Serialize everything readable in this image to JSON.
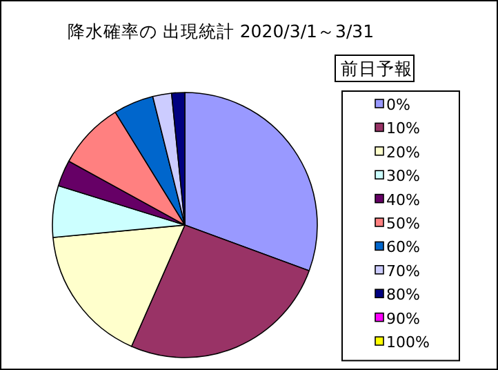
{
  "chart_data": {
    "type": "pie",
    "title": "降水確率の 出現統計 2020/3/1～3/31",
    "legend_title": "前日予報",
    "legend": "right",
    "categories": [
      "0%",
      "10%",
      "20%",
      "30%",
      "40%",
      "50%",
      "60%",
      "70%",
      "80%",
      "90%",
      "100%"
    ],
    "values": [
      30.6,
      26.0,
      16.9,
      6.3,
      3.2,
      8.2,
      4.9,
      2.3,
      1.6,
      0,
      0
    ],
    "colors": [
      "#9999ff",
      "#993366",
      "#ffffcc",
      "#ccffff",
      "#660066",
      "#ff8080",
      "#0066cc",
      "#ccccff",
      "#000080",
      "#ff00ff",
      "#ffff00"
    ]
  }
}
